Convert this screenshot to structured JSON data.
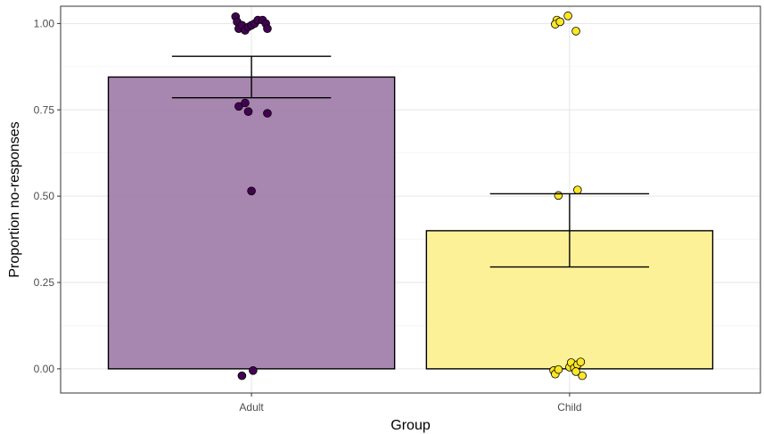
{
  "chart_data": {
    "type": "bar",
    "categories": [
      "Adult",
      "Child"
    ],
    "xlabel": "Group",
    "ylabel": "Proportion no-responses",
    "ylim": [
      -0.07,
      1.05
    ],
    "yticks": [
      0,
      0.25,
      0.5,
      0.75,
      1.0
    ],
    "ytick_labels": [
      "0.00",
      "0.25",
      "0.50",
      "0.75",
      "1.00"
    ],
    "grid": true,
    "legend": "none",
    "bars": [
      {
        "category": "Adult",
        "value": 0.845,
        "error_low": 0.785,
        "error_high": 0.905,
        "fill": "#a07ca8",
        "point_color": "#440154"
      },
      {
        "category": "Child",
        "value": 0.4,
        "error_low": 0.295,
        "error_high": 0.507,
        "fill": "#fdf08f",
        "point_color": "#fde725"
      }
    ],
    "points": [
      {
        "group": "Adult",
        "x": -0.05,
        "y": 1.02
      },
      {
        "group": "Adult",
        "x": -0.045,
        "y": 1.005
      },
      {
        "group": "Adult",
        "x": -0.04,
        "y": 0.985
      },
      {
        "group": "Adult",
        "x": -0.03,
        "y": 0.995
      },
      {
        "group": "Adult",
        "x": -0.02,
        "y": 0.98
      },
      {
        "group": "Adult",
        "x": -0.01,
        "y": 0.99
      },
      {
        "group": "Adult",
        "x": 0.0,
        "y": 0.995
      },
      {
        "group": "Adult",
        "x": 0.01,
        "y": 1.0
      },
      {
        "group": "Adult",
        "x": 0.02,
        "y": 1.01
      },
      {
        "group": "Adult",
        "x": 0.035,
        "y": 1.01
      },
      {
        "group": "Adult",
        "x": 0.045,
        "y": 1.0
      },
      {
        "group": "Adult",
        "x": 0.05,
        "y": 0.985
      },
      {
        "group": "Adult",
        "x": -0.04,
        "y": 0.76
      },
      {
        "group": "Adult",
        "x": -0.02,
        "y": 0.77
      },
      {
        "group": "Adult",
        "x": -0.01,
        "y": 0.745
      },
      {
        "group": "Adult",
        "x": 0.05,
        "y": 0.74
      },
      {
        "group": "Adult",
        "x": 0.0,
        "y": 0.515
      },
      {
        "group": "Adult",
        "x": -0.03,
        "y": -0.02
      },
      {
        "group": "Adult",
        "x": 0.005,
        "y": -0.005
      },
      {
        "group": "Child",
        "x": -0.04,
        "y": 1.01
      },
      {
        "group": "Child",
        "x": -0.045,
        "y": 0.998
      },
      {
        "group": "Child",
        "x": -0.03,
        "y": 1.005
      },
      {
        "group": "Child",
        "x": -0.005,
        "y": 1.022
      },
      {
        "group": "Child",
        "x": 0.02,
        "y": 0.978
      },
      {
        "group": "Child",
        "x": 0.025,
        "y": 0.518
      },
      {
        "group": "Child",
        "x": -0.035,
        "y": 0.502
      },
      {
        "group": "Child",
        "x": -0.05,
        "y": -0.005
      },
      {
        "group": "Child",
        "x": -0.045,
        "y": -0.015
      },
      {
        "group": "Child",
        "x": -0.035,
        "y": -0.002
      },
      {
        "group": "Child",
        "x": 0.0,
        "y": 0.005
      },
      {
        "group": "Child",
        "x": 0.005,
        "y": 0.018
      },
      {
        "group": "Child",
        "x": 0.015,
        "y": 0.002
      },
      {
        "group": "Child",
        "x": 0.025,
        "y": 0.012
      },
      {
        "group": "Child",
        "x": 0.035,
        "y": 0.02
      },
      {
        "group": "Child",
        "x": 0.04,
        "y": -0.02
      },
      {
        "group": "Child",
        "x": 0.02,
        "y": -0.008
      }
    ]
  }
}
